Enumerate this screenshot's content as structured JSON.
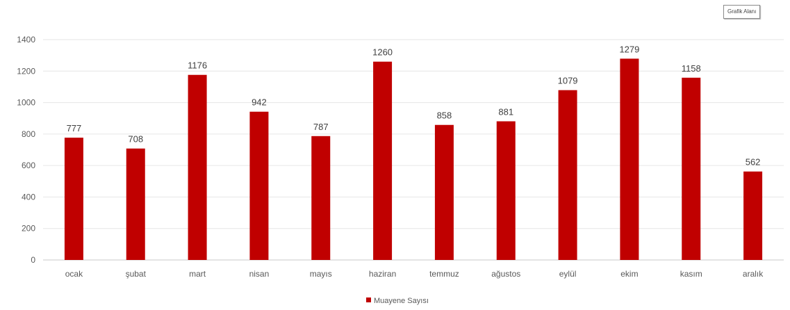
{
  "tooltip": {
    "label": "Grafik Alanı"
  },
  "chart_data": {
    "type": "bar",
    "categories": [
      "ocak",
      "şubat",
      "mart",
      "nisan",
      "mayıs",
      "haziran",
      "temmuz",
      "ağustos",
      "eylül",
      "ekim",
      "kasım",
      "aralık"
    ],
    "series": [
      {
        "name": "Muayene Sayısı",
        "color": "#C00000",
        "values": [
          777,
          708,
          1176,
          942,
          787,
          1260,
          858,
          881,
          1079,
          1279,
          1158,
          562
        ]
      }
    ],
    "ylim": [
      0,
      1400
    ],
    "yticks": [
      0,
      200,
      400,
      600,
      800,
      1000,
      1200,
      1400
    ],
    "grid": true,
    "legend_position": "bottom",
    "data_labels": true
  }
}
